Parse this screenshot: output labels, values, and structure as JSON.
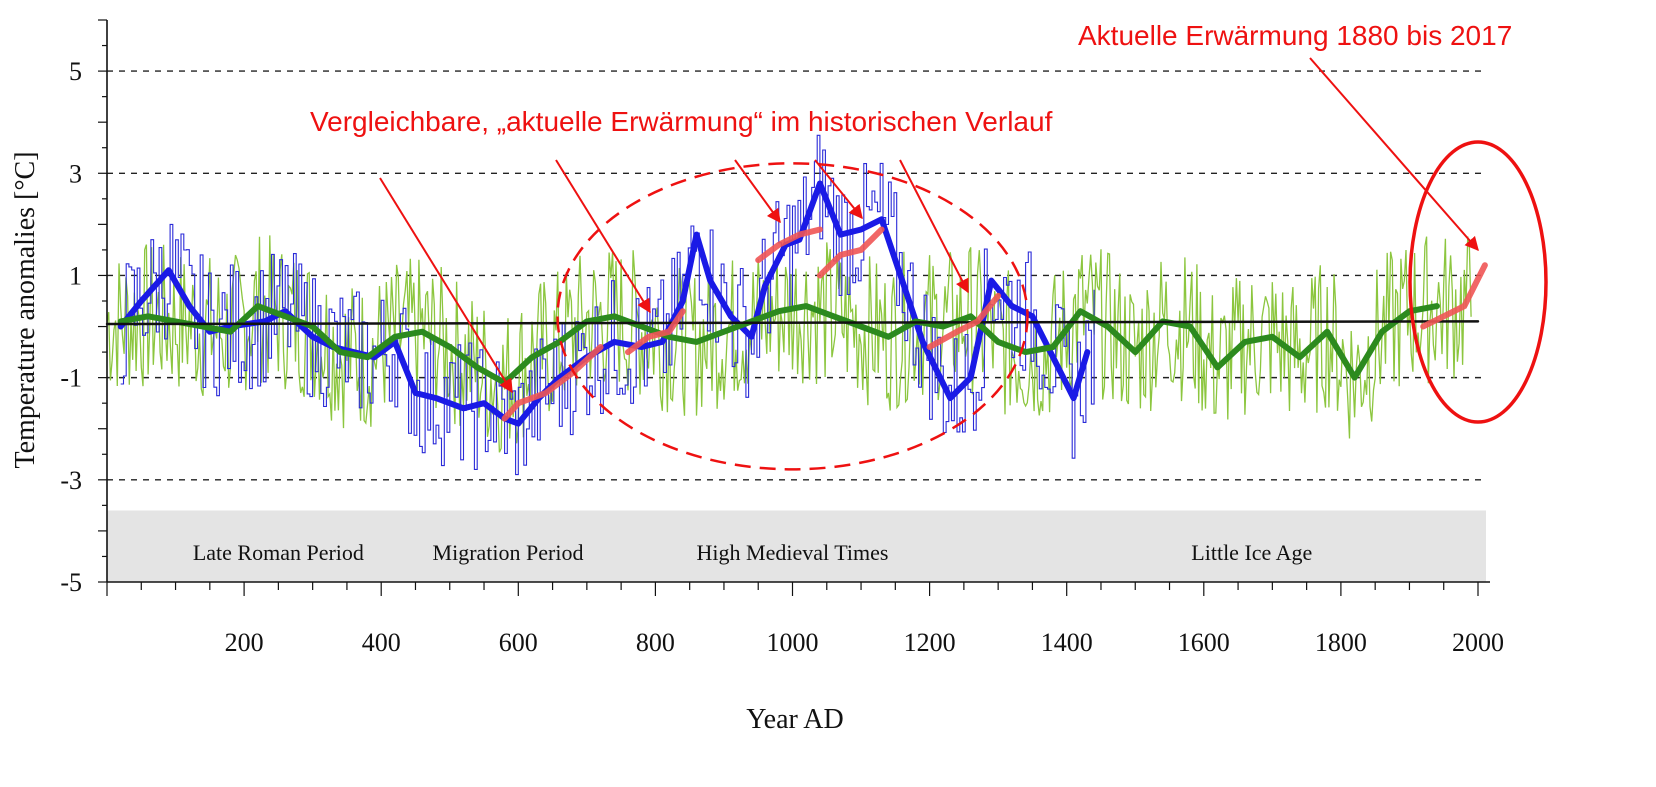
{
  "chart_data": {
    "type": "line",
    "title": "",
    "xlabel": "Year AD",
    "ylabel": "Temperature anomalies [°C]",
    "xlim": [
      0,
      2020
    ],
    "ylim": [
      -5,
      6
    ],
    "x_ticks": [
      200,
      400,
      600,
      800,
      1000,
      1200,
      1400,
      1600,
      1800,
      2000
    ],
    "y_ticks": [
      5,
      3,
      1,
      -1,
      -3,
      -5
    ],
    "gridlines_y": [
      5,
      3,
      1,
      -1,
      -3
    ],
    "periods": [
      {
        "label": "Late Roman Period",
        "center_year": 250
      },
      {
        "label": "Migration Period",
        "center_year": 585
      },
      {
        "label": "High Medieval Times",
        "center_year": 1000
      },
      {
        "label": "Little Ice Age",
        "center_year": 1670
      }
    ],
    "band_ylim": [
      -5,
      -3.6
    ],
    "series": [
      {
        "color": "#1a1ae6",
        "style": "thick",
        "x": [
          20,
          50,
          90,
          120,
          150,
          180,
          230,
          260,
          300,
          330,
          360,
          390,
          420,
          450,
          480,
          520,
          550,
          580,
          600,
          630,
          660,
          700,
          740,
          780,
          810,
          840,
          860,
          880,
          910,
          940,
          960,
          990,
          1010,
          1040,
          1070,
          1100,
          1130,
          1160,
          1190,
          1230,
          1260,
          1290,
          1320,
          1350,
          1380,
          1410,
          1430
        ],
        "y": [
          0,
          0.5,
          1.1,
          0.4,
          -0.1,
          0,
          0.1,
          0.3,
          -0.2,
          -0.4,
          -0.5,
          -0.6,
          -0.3,
          -1.3,
          -1.4,
          -1.6,
          -1.5,
          -1.8,
          -1.9,
          -1.4,
          -1.0,
          -0.6,
          -0.3,
          -0.4,
          -0.3,
          0.5,
          1.8,
          0.9,
          0.2,
          -0.2,
          0.8,
          1.6,
          1.7,
          2.8,
          1.8,
          1.9,
          2.1,
          0.9,
          -0.3,
          -1.4,
          -1.0,
          0.9,
          0.4,
          0.2,
          -0.6,
          -1.4,
          -0.5
        ]
      },
      {
        "color": "#2c8a1e",
        "style": "thick",
        "x": [
          20,
          60,
          100,
          140,
          180,
          220,
          260,
          300,
          340,
          380,
          420,
          460,
          500,
          540,
          580,
          620,
          660,
          700,
          740,
          780,
          820,
          860,
          900,
          940,
          980,
          1020,
          1060,
          1100,
          1140,
          1180,
          1220,
          1260,
          1300,
          1340,
          1380,
          1420,
          1460,
          1500,
          1540,
          1580,
          1620,
          1660,
          1700,
          1740,
          1780,
          1820,
          1860,
          1900,
          1940
        ],
        "y": [
          0.1,
          0.2,
          0.1,
          0.0,
          -0.1,
          0.4,
          0.2,
          0.0,
          -0.5,
          -0.6,
          -0.2,
          -0.1,
          -0.4,
          -0.8,
          -1.1,
          -0.6,
          -0.3,
          0.1,
          0.2,
          0.0,
          -0.2,
          -0.3,
          -0.1,
          0.1,
          0.3,
          0.4,
          0.2,
          0.0,
          -0.2,
          0.1,
          0.0,
          0.2,
          -0.3,
          -0.5,
          -0.4,
          0.3,
          0.0,
          -0.5,
          0.1,
          0.0,
          -0.8,
          -0.3,
          -0.2,
          -0.6,
          -0.1,
          -1.0,
          -0.1,
          0.3,
          0.4
        ]
      },
      {
        "color": "#111111",
        "style": "trend",
        "x": [
          0,
          2000
        ],
        "y": [
          0.05,
          0.1
        ]
      }
    ],
    "highlights": [
      {
        "color": "#f05555",
        "x": [
          580,
          600,
          640,
          680,
          720
        ],
        "y": [
          -1.8,
          -1.5,
          -1.3,
          -0.9,
          -0.4
        ]
      },
      {
        "color": "#f05555",
        "x": [
          760,
          790,
          820,
          840
        ],
        "y": [
          -0.5,
          -0.2,
          -0.1,
          0.3
        ]
      },
      {
        "color": "#f05555",
        "x": [
          950,
          980,
          1010,
          1040
        ],
        "y": [
          1.3,
          1.6,
          1.8,
          1.9
        ]
      },
      {
        "color": "#f05555",
        "x": [
          1040,
          1070,
          1100,
          1130
        ],
        "y": [
          1.0,
          1.4,
          1.5,
          1.9
        ]
      },
      {
        "color": "#f05555",
        "x": [
          1200,
          1240,
          1270,
          1300
        ],
        "y": [
          -0.4,
          -0.1,
          0.1,
          0.6
        ]
      },
      {
        "color": "#f05555",
        "x": [
          1920,
          1950,
          1980,
          2010
        ],
        "y": [
          0.0,
          0.2,
          0.4,
          1.2
        ]
      }
    ],
    "annotations": [
      {
        "text": "Vergleichbare, „aktuelle Erwärmung“ im historischen Verlauf",
        "color": "#ee1111"
      },
      {
        "text": "Aktuelle Erwärmung 1880 bis 2017",
        "color": "#ee1111"
      }
    ]
  }
}
